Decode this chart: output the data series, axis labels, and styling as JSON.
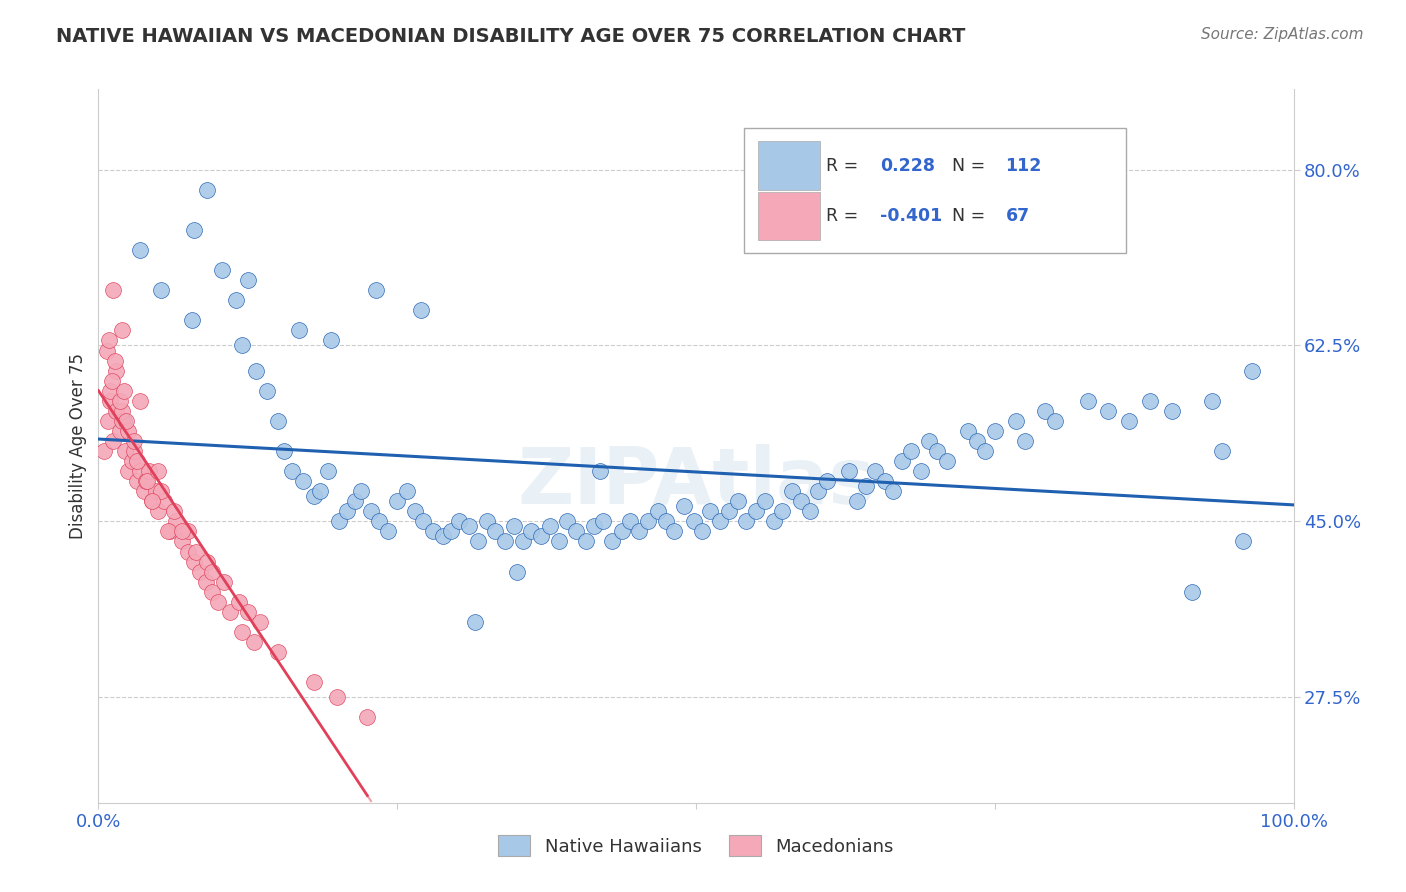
{
  "title": "NATIVE HAWAIIAN VS MACEDONIAN DISABILITY AGE OVER 75 CORRELATION CHART",
  "source": "Source: ZipAtlas.com",
  "ylabel": "Disability Age Over 75",
  "xlim": [
    0,
    100
  ],
  "ylim": [
    17,
    88
  ],
  "yticks": [
    27.5,
    45.0,
    62.5,
    80.0
  ],
  "xticks": [
    0,
    25,
    50,
    75,
    100
  ],
  "xtick_labels": [
    "0.0%",
    "",
    "",
    "",
    "100.0%"
  ],
  "ytick_labels": [
    "27.5%",
    "45.0%",
    "62.5%",
    "80.0%"
  ],
  "blue_R": "0.228",
  "blue_N": "112",
  "pink_R": "-0.401",
  "pink_N": "67",
  "blue_color": "#a8c8e8",
  "pink_color": "#f4a8b8",
  "blue_line_color": "#2060b0",
  "pink_line_color": "#e0405a",
  "text_color": "#333333",
  "tick_color": "#3366cc",
  "grid_color": "#cccccc",
  "background_color": "#ffffff",
  "legend_blue_label": "Native Hawaiians",
  "legend_pink_label": "Macedonians",
  "blue_x": [
    2.1,
    3.5,
    5.2,
    7.8,
    9.1,
    10.3,
    11.5,
    12.0,
    13.2,
    14.1,
    15.0,
    15.5,
    16.2,
    17.1,
    18.0,
    18.5,
    19.2,
    20.1,
    20.8,
    21.5,
    22.0,
    22.8,
    23.5,
    24.2,
    25.0,
    25.8,
    26.5,
    27.2,
    28.0,
    28.8,
    29.5,
    30.2,
    31.0,
    31.8,
    32.5,
    33.2,
    34.0,
    34.8,
    35.5,
    36.2,
    37.0,
    37.8,
    38.5,
    39.2,
    40.0,
    40.8,
    41.5,
    42.2,
    43.0,
    43.8,
    44.5,
    45.2,
    46.0,
    46.8,
    47.5,
    48.2,
    49.0,
    49.8,
    50.5,
    51.2,
    52.0,
    52.8,
    53.5,
    54.2,
    55.0,
    55.8,
    56.5,
    57.2,
    58.0,
    58.8,
    59.5,
    60.2,
    61.0,
    62.8,
    63.5,
    64.2,
    65.0,
    65.8,
    66.5,
    67.2,
    68.0,
    68.8,
    69.5,
    70.2,
    71.0,
    72.8,
    73.5,
    74.2,
    75.0,
    76.8,
    77.5,
    79.2,
    80.0,
    82.8,
    84.5,
    86.2,
    88.0,
    89.8,
    91.5,
    93.2,
    94.0,
    95.8,
    96.5,
    8.0,
    12.5,
    16.8,
    19.5,
    23.2,
    27.0,
    31.5,
    35.0,
    42.0
  ],
  "blue_y": [
    55.0,
    72.0,
    68.0,
    65.0,
    78.0,
    70.0,
    67.0,
    62.5,
    60.0,
    58.0,
    55.0,
    52.0,
    50.0,
    49.0,
    47.5,
    48.0,
    50.0,
    45.0,
    46.0,
    47.0,
    48.0,
    46.0,
    45.0,
    44.0,
    47.0,
    48.0,
    46.0,
    45.0,
    44.0,
    43.5,
    44.0,
    45.0,
    44.5,
    43.0,
    45.0,
    44.0,
    43.0,
    44.5,
    43.0,
    44.0,
    43.5,
    44.5,
    43.0,
    45.0,
    44.0,
    43.0,
    44.5,
    45.0,
    43.0,
    44.0,
    45.0,
    44.0,
    45.0,
    46.0,
    45.0,
    44.0,
    46.5,
    45.0,
    44.0,
    46.0,
    45.0,
    46.0,
    47.0,
    45.0,
    46.0,
    47.0,
    45.0,
    46.0,
    48.0,
    47.0,
    46.0,
    48.0,
    49.0,
    50.0,
    47.0,
    48.5,
    50.0,
    49.0,
    48.0,
    51.0,
    52.0,
    50.0,
    53.0,
    52.0,
    51.0,
    54.0,
    53.0,
    52.0,
    54.0,
    55.0,
    53.0,
    56.0,
    55.0,
    57.0,
    56.0,
    55.0,
    57.0,
    56.0,
    38.0,
    57.0,
    52.0,
    43.0,
    60.0,
    74.0,
    69.0,
    64.0,
    63.0,
    68.0,
    66.0,
    35.0,
    40.0,
    50.0
  ],
  "pink_x": [
    0.5,
    0.8,
    1.0,
    1.2,
    1.5,
    1.8,
    2.0,
    2.2,
    2.5,
    2.8,
    3.0,
    3.2,
    3.5,
    3.8,
    4.0,
    4.2,
    4.5,
    4.8,
    5.0,
    5.5,
    6.0,
    6.5,
    7.0,
    7.5,
    8.0,
    8.5,
    9.0,
    9.5,
    10.0,
    11.0,
    12.0,
    13.0,
    1.0,
    1.5,
    2.0,
    2.5,
    0.7,
    1.1,
    1.8,
    2.3,
    3.2,
    4.1,
    5.2,
    6.3,
    7.5,
    8.2,
    9.1,
    10.5,
    11.8,
    13.5,
    0.9,
    1.4,
    2.1,
    3.0,
    4.5,
    5.8,
    1.2,
    2.0,
    3.5,
    5.0,
    7.0,
    9.5,
    12.5,
    15.0,
    18.0,
    20.0,
    22.5
  ],
  "pink_y": [
    52.0,
    55.0,
    57.0,
    53.0,
    56.0,
    54.0,
    55.0,
    52.0,
    50.0,
    51.0,
    52.0,
    49.0,
    50.0,
    48.0,
    49.0,
    50.0,
    47.0,
    48.0,
    46.0,
    47.0,
    44.0,
    45.0,
    43.0,
    42.0,
    41.0,
    40.0,
    39.0,
    38.0,
    37.0,
    36.0,
    34.0,
    33.0,
    58.0,
    60.0,
    56.0,
    54.0,
    62.0,
    59.0,
    57.0,
    55.0,
    51.0,
    49.0,
    48.0,
    46.0,
    44.0,
    42.0,
    41.0,
    39.0,
    37.0,
    35.0,
    63.0,
    61.0,
    58.0,
    53.0,
    47.0,
    44.0,
    68.0,
    64.0,
    57.0,
    50.0,
    44.0,
    40.0,
    36.0,
    32.0,
    29.0,
    27.5,
    25.5
  ]
}
